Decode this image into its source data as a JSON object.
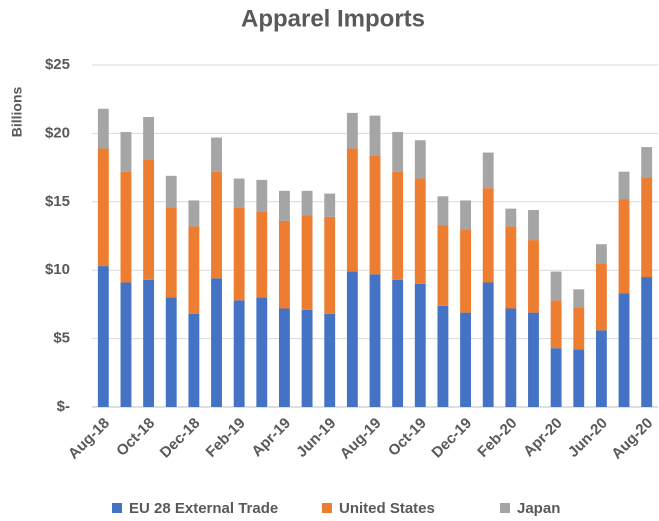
{
  "chart_data": {
    "type": "stacked_bar",
    "title": "Apparel Imports",
    "y_label": "Billions",
    "categories": [
      "Aug-18",
      null,
      "Oct-18",
      null,
      "Dec-18",
      null,
      "Feb-19",
      null,
      "Apr-19",
      null,
      "Jun-19",
      null,
      "Aug-19",
      null,
      "Oct-19",
      null,
      "Dec-19",
      null,
      "Feb-20",
      null,
      "Apr-20",
      null,
      "Jun-20",
      null,
      "Aug-20"
    ],
    "series": [
      {
        "name": "EU 28 External Trade",
        "color": "#4472c4",
        "values": [
          10.3,
          9.1,
          9.3,
          8.0,
          6.8,
          9.4,
          7.8,
          8.0,
          7.2,
          7.1,
          6.8,
          9.9,
          9.7,
          9.3,
          9.0,
          7.4,
          6.9,
          9.1,
          7.2,
          6.9,
          4.3,
          4.2,
          5.6,
          8.3,
          9.5
        ]
      },
      {
        "name": "United States",
        "color": "#ed7d31",
        "values": [
          8.6,
          8.1,
          8.8,
          6.6,
          6.4,
          7.8,
          6.8,
          6.3,
          6.4,
          6.9,
          7.1,
          9.0,
          8.7,
          7.9,
          7.7,
          5.9,
          6.1,
          6.9,
          6.0,
          5.3,
          3.5,
          3.1,
          4.9,
          6.9,
          7.3
        ]
      },
      {
        "name": "Japan",
        "color": "#a5a5a5",
        "values": [
          2.9,
          2.9,
          3.1,
          2.3,
          1.9,
          2.5,
          2.1,
          2.3,
          2.2,
          1.8,
          1.7,
          2.6,
          2.9,
          2.9,
          2.8,
          2.1,
          2.1,
          2.6,
          1.3,
          2.2,
          2.1,
          1.3,
          1.4,
          2.0,
          2.2
        ]
      }
    ],
    "ylim": [
      0,
      25
    ],
    "yticks": [
      {
        "value": 0,
        "label": "$-"
      },
      {
        "value": 5,
        "label": "$5"
      },
      {
        "value": 10,
        "label": "$10"
      },
      {
        "value": 15,
        "label": "$15"
      },
      {
        "value": 20,
        "label": "$20"
      },
      {
        "value": 25,
        "label": "$25"
      }
    ],
    "grid": true,
    "legend": "bottom"
  }
}
